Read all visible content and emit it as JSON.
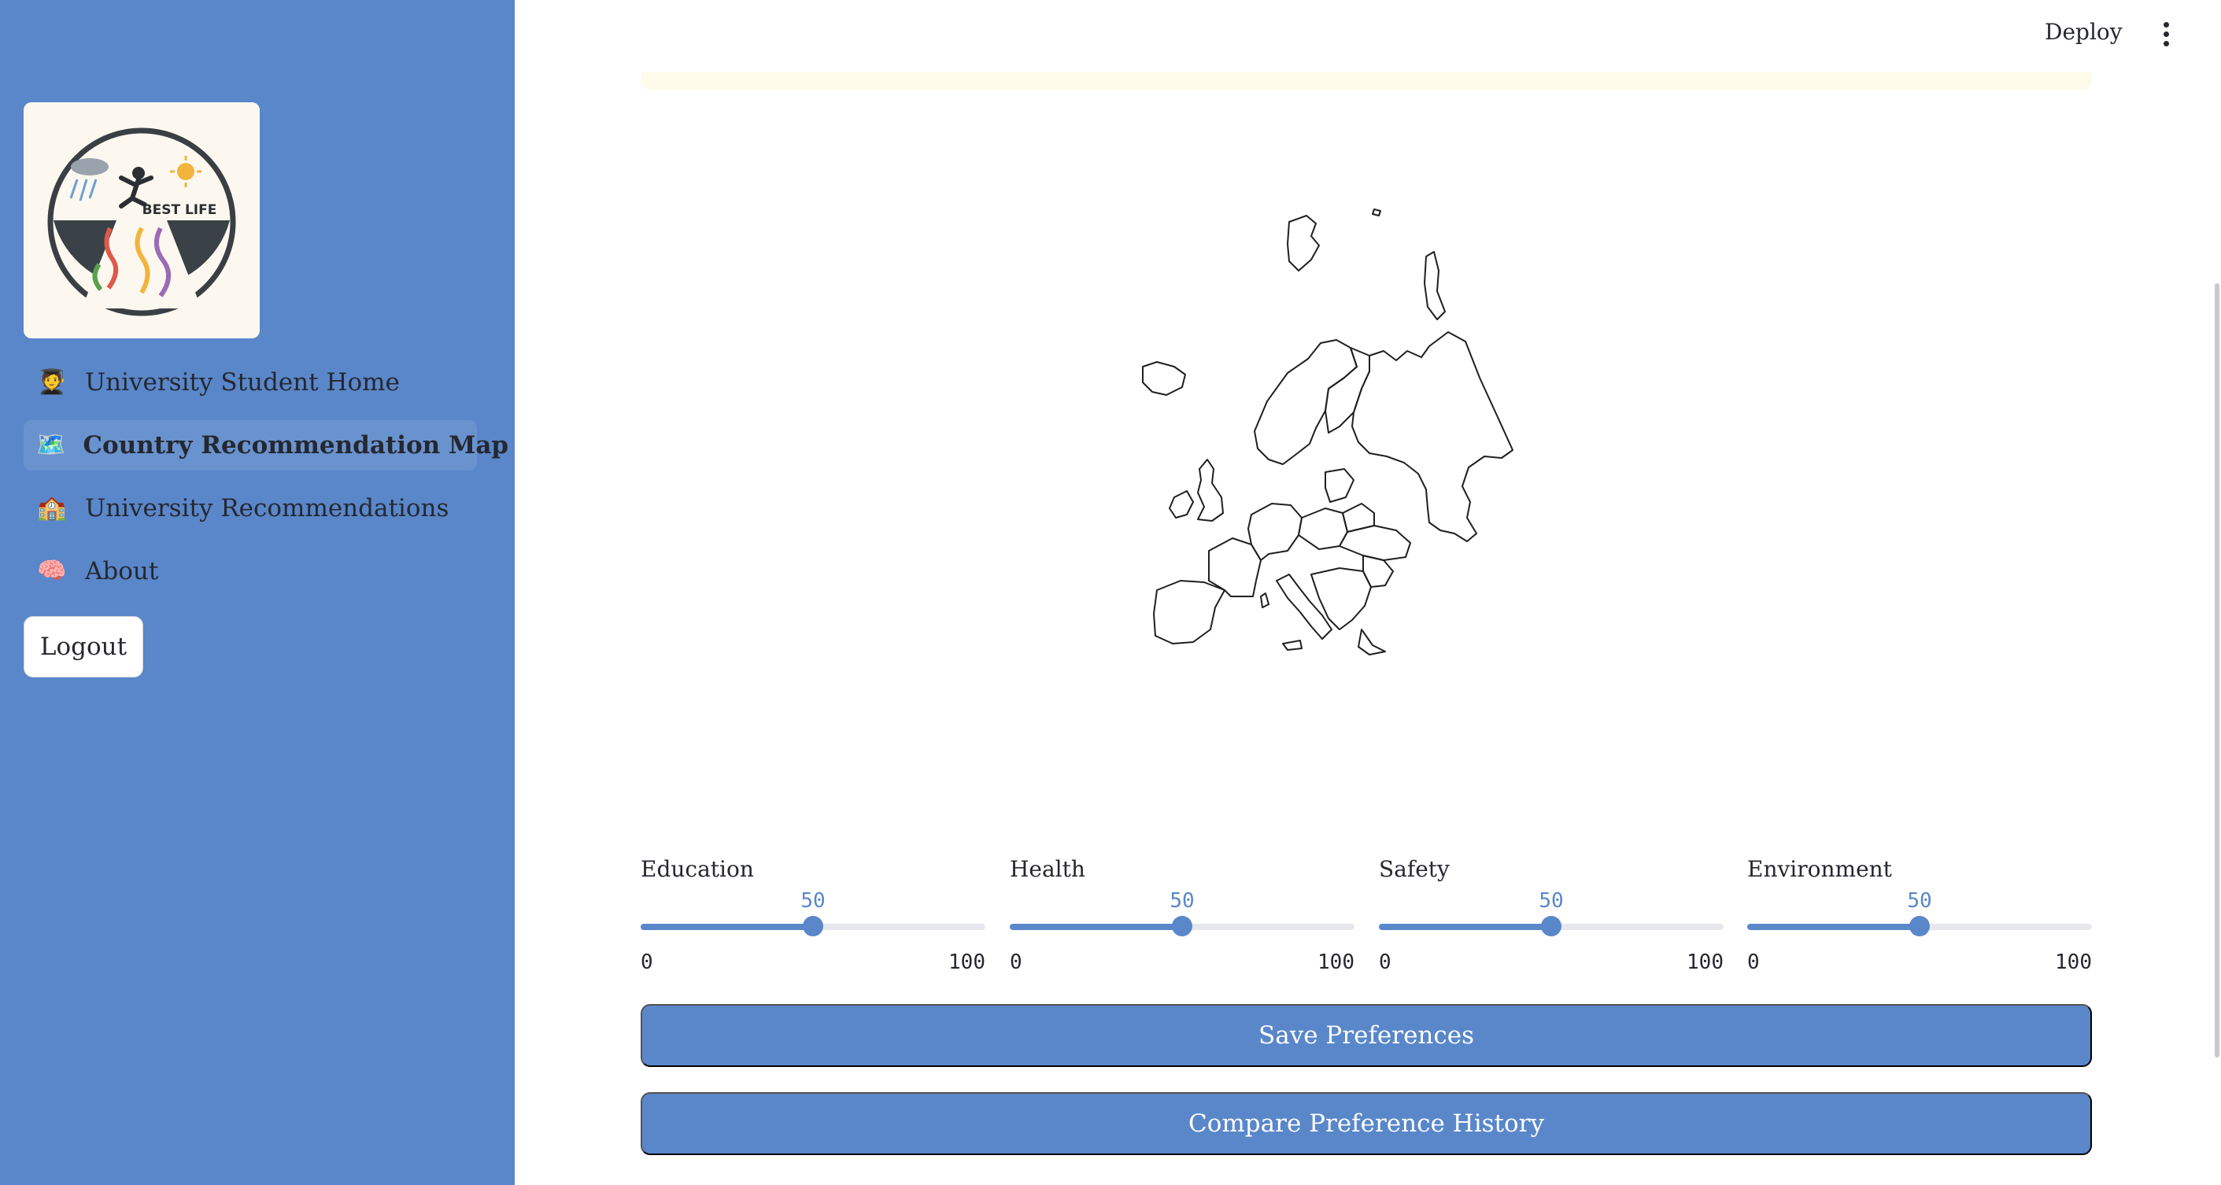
{
  "header": {
    "deploy_label": "Deploy",
    "menu_icon": "more-vertical-icon"
  },
  "sidebar": {
    "logo_text": "BEST LIFE",
    "items": [
      {
        "emoji": "🧑‍🎓",
        "label": "University Student Home",
        "active": false
      },
      {
        "emoji": "🗺️",
        "label": "Country Recommendation Map",
        "active": true
      },
      {
        "emoji": "🏫",
        "label": "University Recommendations",
        "active": false
      },
      {
        "emoji": "🧠",
        "label": "About",
        "active": false
      }
    ],
    "logout_label": "Logout"
  },
  "map": {
    "region": "Europe",
    "icon": "europe-map"
  },
  "sliders": [
    {
      "label": "Education",
      "value": 50,
      "min": "0",
      "max": "100",
      "value_text": "50"
    },
    {
      "label": "Health",
      "value": 50,
      "min": "0",
      "max": "100",
      "value_text": "50"
    },
    {
      "label": "Safety",
      "value": 50,
      "min": "0",
      "max": "100",
      "value_text": "50"
    },
    {
      "label": "Environment",
      "value": 50,
      "min": "0",
      "max": "100",
      "value_text": "50"
    }
  ],
  "buttons": {
    "save_label": "Save Preferences",
    "compare_label": "Compare Preference History"
  },
  "colors": {
    "sidebar_bg": "#5987ca",
    "accent": "#5987ca",
    "notice_bg": "#fffbea"
  }
}
